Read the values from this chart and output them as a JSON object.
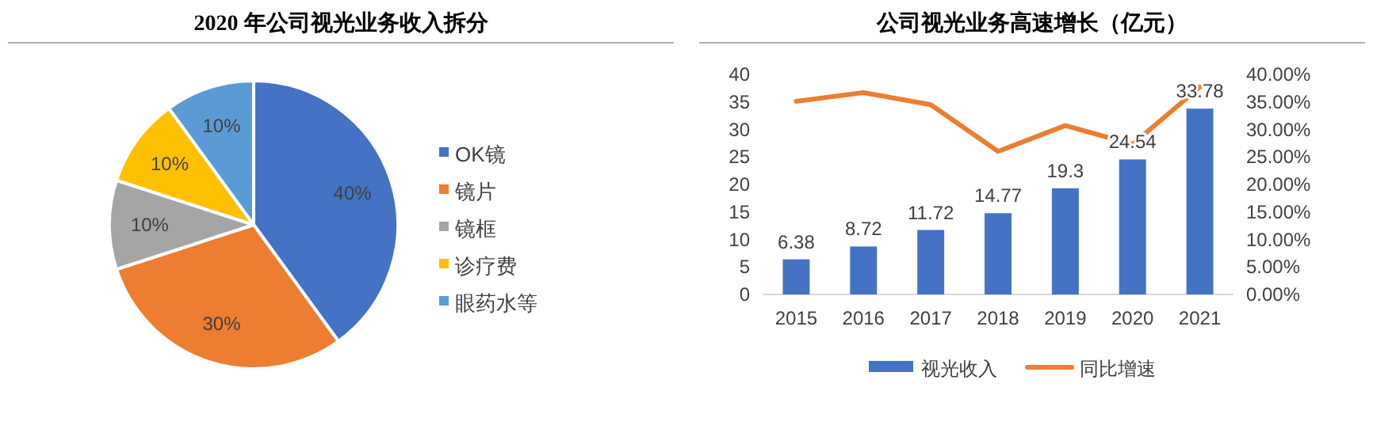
{
  "chart_data": [
    {
      "type": "pie",
      "title": "2020 年公司视光业务收入拆分",
      "categories": [
        "OK镜",
        "镜片",
        "镜框",
        "诊疗费",
        "眼药水等"
      ],
      "values": [
        40,
        30,
        10,
        10,
        10
      ],
      "colors": [
        "#4472c4",
        "#ed7d31",
        "#a5a5a5",
        "#ffc000",
        "#5b9bd5"
      ],
      "value_labels": [
        "40%",
        "30%",
        "10%",
        "10%",
        "10%"
      ],
      "legend": "right"
    },
    {
      "type": "bar",
      "title": "公司视光业务高速增长（亿元）",
      "categories": [
        "2015",
        "2016",
        "2017",
        "2018",
        "2019",
        "2020",
        "2021"
      ],
      "series": [
        {
          "name": "视光收入",
          "type": "bar",
          "color": "#4472c4",
          "values": [
            6.38,
            8.72,
            11.72,
            14.77,
            19.3,
            24.54,
            33.78
          ],
          "value_labels": [
            "6.38",
            "8.72",
            "11.72",
            "14.77",
            "19.3",
            "24.54",
            "33.78"
          ]
        },
        {
          "name": "同比增速",
          "type": "line",
          "axis": "y2",
          "color": "#ed7d31",
          "values": [
            35.1,
            36.7,
            34.5,
            26.0,
            30.7,
            27.3,
            37.7
          ]
        }
      ],
      "ylim": [
        0,
        40
      ],
      "yticks": [
        0,
        5,
        10,
        15,
        20,
        25,
        30,
        35,
        40
      ],
      "y2lim": [
        0,
        40
      ],
      "y2ticks": [
        {
          "value": 0,
          "label": "0.00%"
        },
        {
          "value": 5,
          "label": "5.00%"
        },
        {
          "value": 10,
          "label": "10.00%"
        },
        {
          "value": 15,
          "label": "15.00%"
        },
        {
          "value": 20,
          "label": "20.00%"
        },
        {
          "value": 25,
          "label": "25.00%"
        },
        {
          "value": 30,
          "label": "30.00%"
        },
        {
          "value": 35,
          "label": "35.00%"
        },
        {
          "value": 40,
          "label": "40.00%"
        }
      ],
      "legend": "bottom",
      "grid": false,
      "marker": "none"
    }
  ]
}
